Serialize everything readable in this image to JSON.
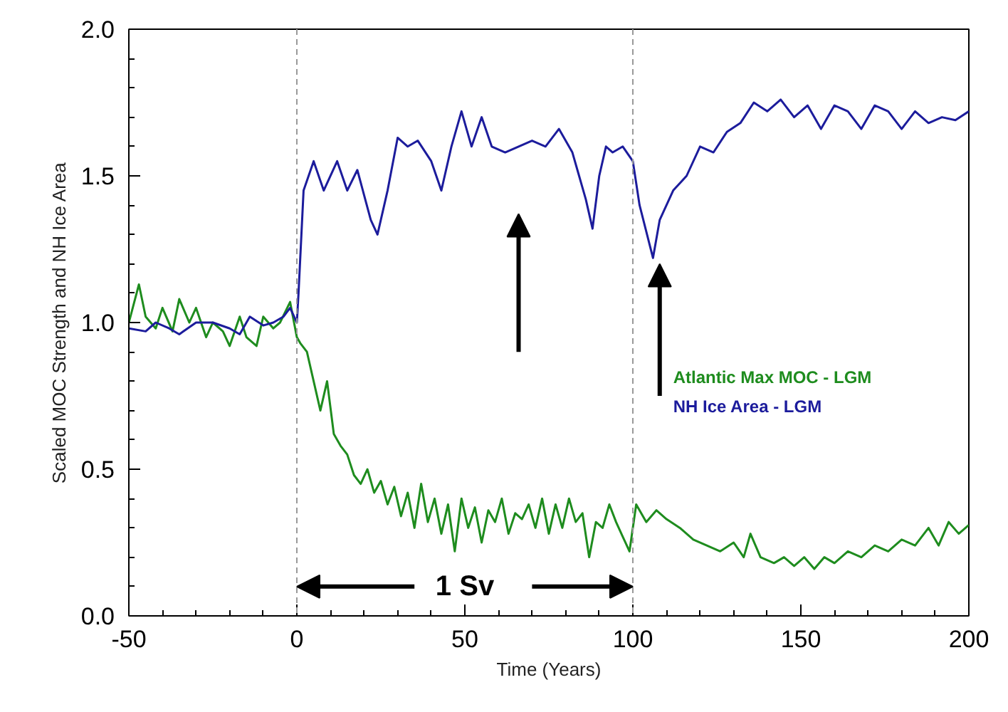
{
  "chart_data": {
    "type": "line",
    "xlabel": "Time (Years)",
    "ylabel": "Scaled MOC Strength and NH Ice Area",
    "xlim": [
      -50,
      200
    ],
    "xticks": [
      -50,
      0,
      50,
      100,
      150,
      200
    ],
    "ylim": [
      0,
      2
    ],
    "yticks": [
      {
        "value": 0,
        "label": "0.0"
      },
      {
        "value": 0.5,
        "label": "0.5"
      },
      {
        "value": 1,
        "label": "1.0"
      },
      {
        "value": 1.5,
        "label": "1.5"
      },
      {
        "value": 2,
        "label": "2.0"
      }
    ],
    "grid": false,
    "line_style": "solid",
    "series": [
      {
        "name": "Atlantic Max MOC - LGM",
        "color": "#1e8c1e",
        "x": [
          -50,
          -47,
          -45,
          -42,
          -40,
          -37,
          -35,
          -32,
          -30,
          -27,
          -25,
          -22,
          -20,
          -17,
          -15,
          -12,
          -10,
          -7,
          -5,
          -2,
          0,
          1,
          3,
          5,
          7,
          9,
          11,
          13,
          15,
          17,
          19,
          21,
          23,
          25,
          27,
          29,
          31,
          33,
          35,
          37,
          39,
          41,
          43,
          45,
          47,
          49,
          51,
          53,
          55,
          57,
          59,
          61,
          63,
          65,
          67,
          69,
          71,
          73,
          75,
          77,
          79,
          81,
          83,
          85,
          87,
          89,
          91,
          93,
          95,
          97,
          99,
          101,
          104,
          107,
          110,
          114,
          118,
          122,
          126,
          130,
          133,
          135,
          138,
          142,
          145,
          148,
          151,
          154,
          157,
          160,
          164,
          168,
          172,
          176,
          180,
          184,
          188,
          191,
          194,
          197,
          200
        ],
        "values": [
          1.0,
          1.13,
          1.02,
          0.98,
          1.05,
          0.97,
          1.08,
          1.0,
          1.05,
          0.95,
          1.0,
          0.97,
          0.92,
          1.02,
          0.95,
          0.92,
          1.02,
          0.98,
          1.0,
          1.07,
          0.95,
          0.93,
          0.9,
          0.8,
          0.7,
          0.8,
          0.62,
          0.58,
          0.55,
          0.48,
          0.45,
          0.5,
          0.42,
          0.46,
          0.38,
          0.44,
          0.34,
          0.42,
          0.3,
          0.45,
          0.32,
          0.4,
          0.28,
          0.38,
          0.22,
          0.4,
          0.3,
          0.37,
          0.25,
          0.36,
          0.32,
          0.4,
          0.28,
          0.35,
          0.33,
          0.38,
          0.3,
          0.4,
          0.28,
          0.38,
          0.3,
          0.4,
          0.32,
          0.35,
          0.2,
          0.32,
          0.3,
          0.38,
          0.32,
          0.27,
          0.22,
          0.38,
          0.32,
          0.36,
          0.33,
          0.3,
          0.26,
          0.24,
          0.22,
          0.25,
          0.2,
          0.28,
          0.2,
          0.18,
          0.2,
          0.17,
          0.2,
          0.16,
          0.2,
          0.18,
          0.22,
          0.2,
          0.24,
          0.22,
          0.26,
          0.24,
          0.3,
          0.24,
          0.32,
          0.28,
          0.31
        ]
      },
      {
        "name": "NH Ice Area - LGM",
        "color": "#1c1c9c",
        "x": [
          -50,
          -45,
          -42,
          -38,
          -35,
          -30,
          -25,
          -20,
          -17,
          -14,
          -10,
          -7,
          -4,
          -2,
          0,
          0.5,
          2,
          5,
          8,
          12,
          15,
          18,
          22,
          24,
          27,
          30,
          33,
          36,
          40,
          43,
          46,
          49,
          52,
          55,
          58,
          62,
          66,
          70,
          74,
          78,
          82,
          84,
          86,
          88,
          90,
          92,
          94,
          97,
          100,
          102,
          106,
          108,
          112,
          116,
          120,
          124,
          128,
          132,
          136,
          140,
          144,
          148,
          152,
          156,
          160,
          164,
          168,
          172,
          176,
          180,
          184,
          188,
          192,
          196,
          200
        ],
        "values": [
          0.98,
          0.97,
          1.0,
          0.98,
          0.96,
          1.0,
          1.0,
          0.98,
          0.96,
          1.02,
          0.99,
          1.0,
          1.02,
          1.05,
          1.0,
          1.1,
          1.45,
          1.55,
          1.45,
          1.55,
          1.45,
          1.52,
          1.35,
          1.3,
          1.45,
          1.63,
          1.6,
          1.62,
          1.55,
          1.45,
          1.6,
          1.72,
          1.6,
          1.7,
          1.6,
          1.58,
          1.6,
          1.62,
          1.6,
          1.66,
          1.58,
          1.5,
          1.42,
          1.32,
          1.5,
          1.6,
          1.58,
          1.6,
          1.55,
          1.4,
          1.22,
          1.35,
          1.45,
          1.5,
          1.6,
          1.58,
          1.65,
          1.68,
          1.75,
          1.72,
          1.76,
          1.7,
          1.74,
          1.66,
          1.74,
          1.72,
          1.66,
          1.74,
          1.72,
          1.66,
          1.72,
          1.68,
          1.7,
          1.69,
          1.72
        ]
      }
    ],
    "ref_lines": [
      {
        "axis": "x",
        "value": 0,
        "color": "#999999",
        "line_style": "dashed"
      },
      {
        "axis": "x",
        "value": 100,
        "color": "#999999",
        "line_style": "dashed"
      }
    ],
    "annotations": [
      {
        "text": "1 Sv",
        "x": 50,
        "y": 0.1
      }
    ]
  }
}
